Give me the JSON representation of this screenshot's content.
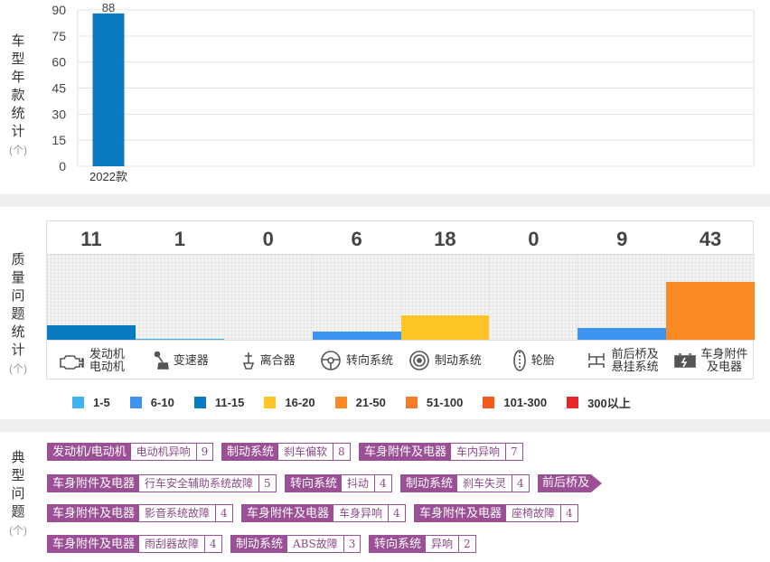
{
  "sections": {
    "year": {
      "label": [
        "车",
        "型",
        "年",
        "款",
        "统",
        "计"
      ],
      "unit": "(个)"
    },
    "quality": {
      "label": [
        "质",
        "量",
        "问",
        "题",
        "统",
        "计"
      ],
      "unit": "(个)"
    },
    "typical": {
      "label": [
        "典",
        "型",
        "问",
        "题"
      ],
      "unit": "(个)"
    }
  },
  "chart_data": [
    {
      "type": "bar",
      "categories": [
        "2022款"
      ],
      "values": [
        88
      ],
      "ylim": [
        0,
        90
      ],
      "yticks": [
        0,
        15,
        30,
        45,
        60,
        75,
        90
      ],
      "grid": true,
      "color": "#0a7bc1"
    },
    {
      "type": "bar",
      "categories": [
        "发动机 电动机",
        "变速器",
        "离合器",
        "转向系统",
        "制动系统",
        "轮胎",
        "前后桥及 悬挂系统",
        "车身附件 及电器"
      ],
      "values": [
        11,
        1,
        0,
        6,
        18,
        0,
        9,
        43
      ],
      "colors": [
        "#0a7bc1",
        "#3fb4f0",
        "#3fb4f0",
        "#3d93f0",
        "#fdc526",
        "#3fb4f0",
        "#3d93f0",
        "#fb8a25"
      ],
      "icons": [
        "engine-icon",
        "gear-shift-icon",
        "clutch-icon",
        "steering-wheel-icon",
        "brake-disc-icon",
        "tire-icon",
        "suspension-icon",
        "battery-icon"
      ]
    }
  ],
  "quality_labels": [
    [
      "发动机",
      "电动机"
    ],
    [
      "变速器"
    ],
    [
      "离合器"
    ],
    [
      "转向系统"
    ],
    [
      "制动系统"
    ],
    [
      "轮胎"
    ],
    [
      "前后桥及",
      "悬挂系统"
    ],
    [
      "车身附件",
      "及电器"
    ]
  ],
  "legend": [
    {
      "label": "1-5",
      "color": "#3fb4f0"
    },
    {
      "label": "6-10",
      "color": "#3d93f0"
    },
    {
      "label": "11-15",
      "color": "#0a7bc1"
    },
    {
      "label": "16-20",
      "color": "#fdc526"
    },
    {
      "label": "21-50",
      "color": "#fb8a25"
    },
    {
      "label": "51-100",
      "color": "#f77a2c"
    },
    {
      "label": "101-300",
      "color": "#f55a1c"
    },
    {
      "label": "300以上",
      "color": "#e8262b"
    }
  ],
  "typical_problems": [
    [
      {
        "system": "发动机/电动机",
        "issue": "电动机异响",
        "count": "9"
      },
      {
        "system": "制动系统",
        "issue": "刹车偏软",
        "count": "8"
      },
      {
        "system": "车身附件及电器",
        "issue": "车内异响",
        "count": "7"
      }
    ],
    [
      {
        "system": "车身附件及电器",
        "issue": "行车安全辅助系统故障",
        "count": "5"
      },
      {
        "system": "转向系统",
        "issue": "抖动",
        "count": "4"
      },
      {
        "system": "制动系统",
        "issue": "刹车失灵",
        "count": "4"
      },
      {
        "system": "前后桥及",
        "issue": "",
        "count": ""
      }
    ],
    [
      {
        "system": "车身附件及电器",
        "issue": "影音系统故障",
        "count": "4"
      },
      {
        "system": "车身附件及电器",
        "issue": "车身异响",
        "count": "4"
      },
      {
        "system": "车身附件及电器",
        "issue": "座椅故障",
        "count": "4"
      }
    ],
    [
      {
        "system": "车身附件及电器",
        "issue": "雨刮器故障",
        "count": "4"
      },
      {
        "system": "制动系统",
        "issue": "ABS故障",
        "count": "3"
      },
      {
        "system": "转向系统",
        "issue": "异响",
        "count": "2"
      }
    ]
  ]
}
